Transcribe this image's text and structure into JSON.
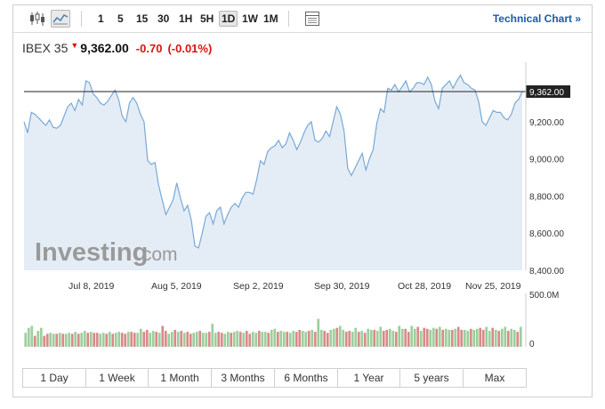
{
  "toolbar": {
    "timeframes": [
      "1",
      "5",
      "15",
      "30",
      "1H",
      "5H",
      "1D",
      "1W",
      "1M"
    ],
    "active_timeframe": "1D",
    "technical_link": "Technical Chart »"
  },
  "quote": {
    "name": "IBEX 35",
    "price": "9,362.00",
    "change": "-0.70",
    "change_pct": "(-0.01%)"
  },
  "watermark": {
    "brand": "Investing",
    "suffix": ".com"
  },
  "range_buttons": [
    "1 Day",
    "1 Week",
    "1 Month",
    "3 Months",
    "6 Months",
    "1 Year",
    "5 years",
    "Max"
  ],
  "colors": {
    "line": "#7aa8d6",
    "fill": "#e4edf6",
    "up_volume": "#9ccf9c",
    "down_volume": "#d98a8a",
    "negative": "#dd1111",
    "link": "#1c5aa8"
  },
  "chart_data": {
    "type": "area",
    "y_ticks": [
      "9,200.00",
      "9,000.00",
      "8,800.00",
      "8,600.00",
      "8,400.00"
    ],
    "y_tick_values": [
      9200,
      9000,
      8800,
      8600,
      8400
    ],
    "ylim": [
      8400,
      9520
    ],
    "x_ticks": [
      "Jul 8, 2019",
      "Aug 5, 2019",
      "Sep 2, 2019",
      "Sep 30, 2019",
      "Oct 28, 2019",
      "Nov 25, 2019"
    ],
    "current_value": 9362,
    "current_label": "9,362.00",
    "series": [
      {
        "values": [
          9200,
          9140,
          9250,
          9240,
          9220,
          9200,
          9180,
          9210,
          9170,
          9165,
          9180,
          9230,
          9280,
          9300,
          9260,
          9320,
          9290,
          9420,
          9410,
          9350,
          9330,
          9300,
          9290,
          9310,
          9340,
          9370,
          9320,
          9230,
          9200,
          9300,
          9330,
          9300,
          9240,
          9200,
          8990,
          8970,
          8980,
          8860,
          8780,
          8700,
          8740,
          8780,
          8870,
          8790,
          8720,
          8750,
          8670,
          8530,
          8520,
          8600,
          8690,
          8710,
          8650,
          8720,
          8740,
          8650,
          8700,
          8740,
          8760,
          8740,
          8790,
          8820,
          8820,
          8810,
          8890,
          8990,
          8970,
          9040,
          9060,
          9070,
          9100,
          9060,
          9080,
          9140,
          9100,
          9050,
          9090,
          9140,
          9180,
          9200,
          9100,
          9090,
          9110,
          9150,
          9120,
          9200,
          9280,
          9240,
          9150,
          8950,
          8910,
          8950,
          8990,
          9030,
          8940,
          9000,
          9050,
          9190,
          9270,
          9250,
          9380,
          9370,
          9400,
          9360,
          9390,
          9420,
          9360,
          9380,
          9410,
          9410,
          9400,
          9440,
          9400,
          9310,
          9270,
          9380,
          9400,
          9420,
          9380,
          9420,
          9450,
          9410,
          9400,
          9380,
          9370,
          9310,
          9200,
          9180,
          9220,
          9260,
          9250,
          9250,
          9220,
          9210,
          9240,
          9300,
          9320,
          9362
        ]
      }
    ],
    "volume": {
      "max_label": "500.0M",
      "zero_label": "0",
      "max": 500,
      "bars": [
        140,
        190,
        210,
        110,
        160,
        190,
        110,
        130,
        140,
        130,
        130,
        140,
        130,
        130,
        140,
        130,
        150,
        130,
        140,
        160,
        140,
        150,
        140,
        140,
        130,
        140,
        130,
        150,
        130,
        140,
        150,
        140,
        130,
        150,
        150,
        140,
        140,
        180,
        150,
        170,
        140,
        160,
        150,
        140,
        210,
        160,
        130,
        150,
        170,
        150,
        160,
        140,
        150,
        130,
        140,
        150,
        160,
        140,
        140,
        150,
        230,
        140,
        150,
        140,
        130,
        150,
        140,
        150,
        160,
        150,
        140,
        160,
        130,
        150,
        140,
        160,
        150,
        150,
        140,
        170,
        180,
        150,
        160,
        150,
        150,
        140,
        160,
        150,
        170,
        160,
        150,
        160,
        170,
        150,
        280,
        170,
        160,
        140,
        170,
        180,
        190,
        210,
        170,
        150,
        160,
        150,
        190,
        150,
        160,
        140,
        180,
        170,
        170,
        160,
        200,
        160,
        170,
        180,
        160,
        150,
        210,
        180,
        180,
        150,
        210,
        180,
        200,
        160,
        190,
        180,
        170,
        190,
        180,
        200,
        170,
        180,
        170,
        170,
        180,
        200,
        170,
        170,
        160,
        180,
        170,
        180,
        190,
        170,
        200,
        160,
        190,
        170,
        160,
        180,
        200,
        160,
        180,
        170,
        150,
        200
      ],
      "up": [
        1,
        1,
        1,
        0,
        1,
        1,
        0,
        0,
        1,
        1,
        0,
        1,
        0,
        1,
        1,
        0,
        1,
        0,
        1,
        1,
        0,
        1,
        0,
        0,
        1,
        1,
        0,
        1,
        0,
        1,
        1,
        0,
        0,
        1,
        0,
        0,
        1,
        1,
        0,
        0,
        1,
        1,
        0,
        1,
        0,
        0,
        1,
        1,
        0,
        1,
        0,
        1,
        0,
        0,
        1,
        1,
        0,
        1,
        1,
        0,
        1,
        1,
        0,
        0,
        1,
        1,
        0,
        1,
        1,
        0,
        1,
        0,
        0,
        1,
        1,
        0,
        1,
        1,
        0,
        1,
        1,
        0,
        1,
        1,
        0,
        1,
        1,
        0,
        0,
        1,
        1,
        0,
        1,
        0,
        1,
        1,
        0,
        0,
        1,
        1,
        0,
        1,
        1,
        0,
        0,
        1,
        1,
        0,
        1,
        0,
        1,
        1,
        0,
        1,
        1,
        0,
        0,
        1,
        1,
        0,
        1,
        1,
        0,
        0,
        1,
        1,
        0,
        1,
        0,
        0,
        1,
        1,
        0,
        1,
        0,
        1,
        1,
        0,
        1,
        0,
        0,
        1,
        1,
        0,
        1,
        1,
        0,
        0,
        1,
        1,
        0,
        1,
        0,
        1,
        1,
        0,
        1,
        1,
        0,
        1
      ]
    }
  }
}
